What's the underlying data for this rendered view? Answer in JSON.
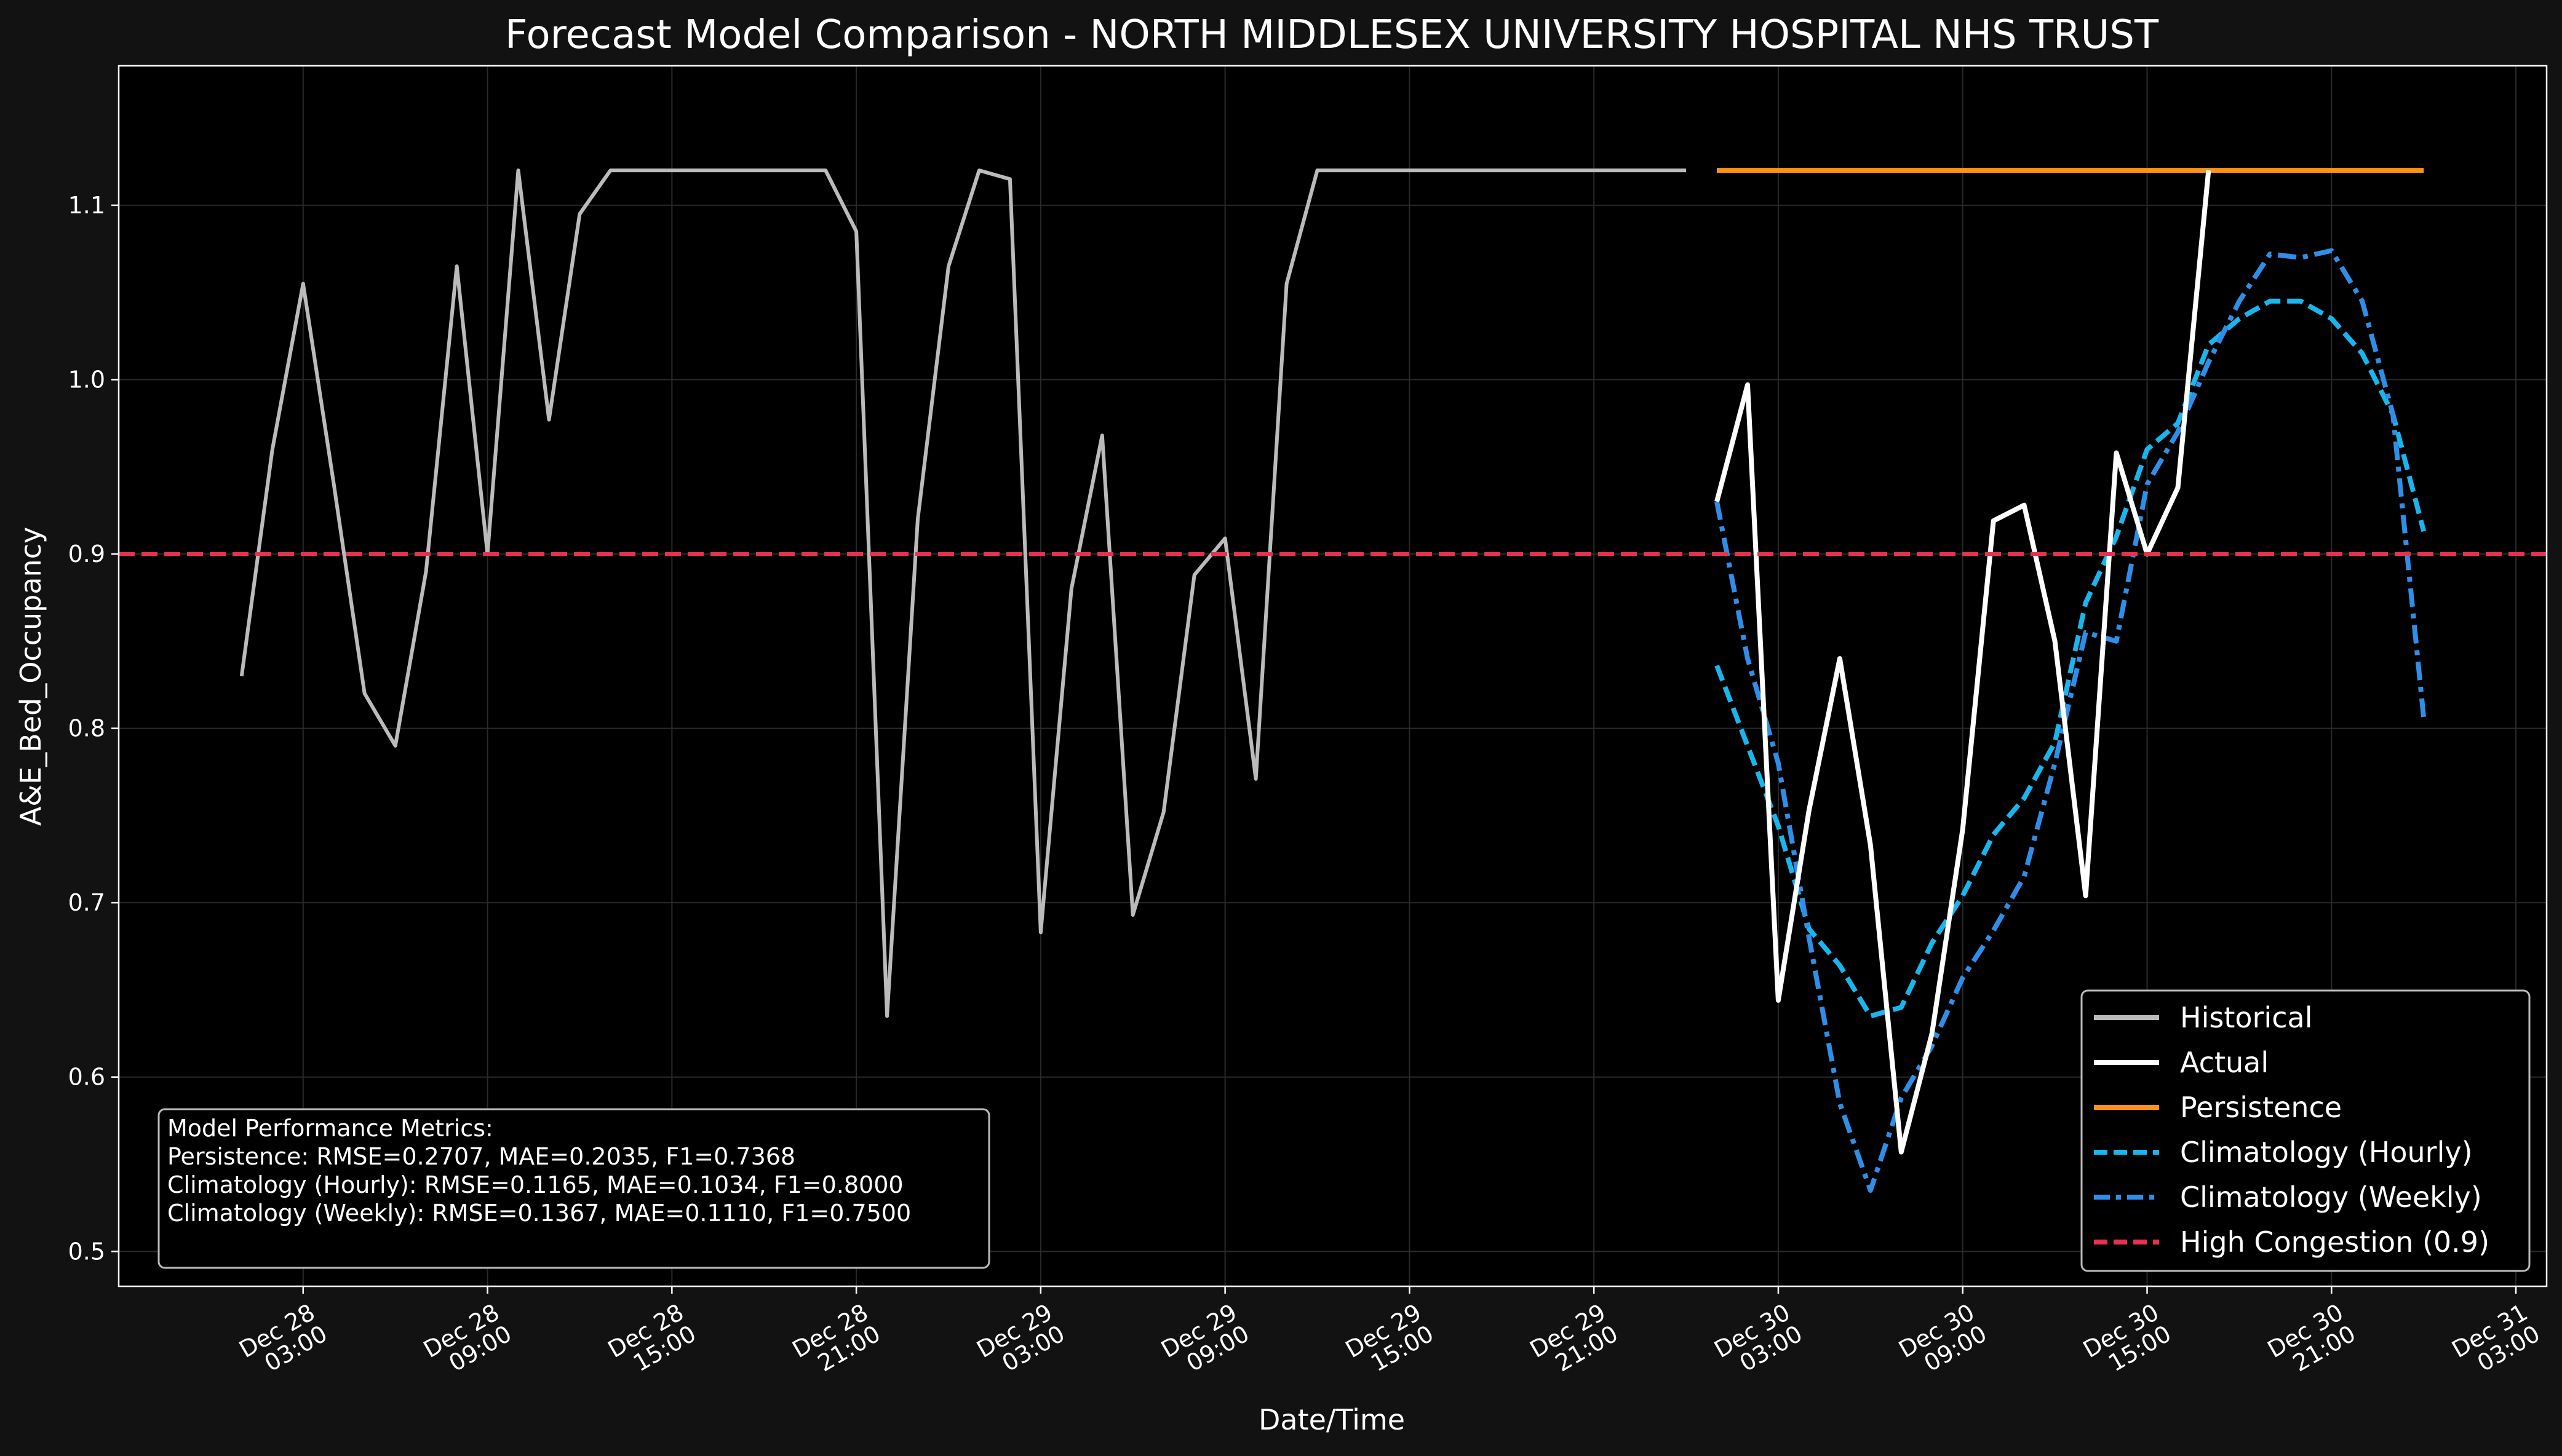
{
  "chart_data": {
    "type": "line",
    "title": "Forecast Model Comparison - NORTH MIDDLESEX UNIVERSITY HOSPITAL NHS TRUST",
    "xlabel": "Date/Time",
    "ylabel": "A&E_Bed_Occupancy",
    "xlim": [
      "2025-12-27T21:00",
      "2025-12-31T04:00"
    ],
    "ylim": [
      0.48,
      1.18
    ],
    "y_ticks": [
      "0.5",
      "0.6",
      "0.7",
      "0.8",
      "0.9",
      "1.0",
      "1.1"
    ],
    "x_ticks": [
      {
        "t": "2025-12-28T03:00",
        "line1": "Dec 28",
        "line2": "03:00"
      },
      {
        "t": "2025-12-28T09:00",
        "line1": "Dec 28",
        "line2": "09:00"
      },
      {
        "t": "2025-12-28T15:00",
        "line1": "Dec 28",
        "line2": "15:00"
      },
      {
        "t": "2025-12-28T21:00",
        "line1": "Dec 28",
        "line2": "21:00"
      },
      {
        "t": "2025-12-29T03:00",
        "line1": "Dec 29",
        "line2": "03:00"
      },
      {
        "t": "2025-12-29T09:00",
        "line1": "Dec 29",
        "line2": "09:00"
      },
      {
        "t": "2025-12-29T15:00",
        "line1": "Dec 29",
        "line2": "15:00"
      },
      {
        "t": "2025-12-29T21:00",
        "line1": "Dec 29",
        "line2": "21:00"
      },
      {
        "t": "2025-12-30T03:00",
        "line1": "Dec 30",
        "line2": "03:00"
      },
      {
        "t": "2025-12-30T09:00",
        "line1": "Dec 30",
        "line2": "09:00"
      },
      {
        "t": "2025-12-30T15:00",
        "line1": "Dec 30",
        "line2": "15:00"
      },
      {
        "t": "2025-12-30T21:00",
        "line1": "Dec 30",
        "line2": "21:00"
      },
      {
        "t": "2025-12-31T03:00",
        "line1": "Dec 31",
        "line2": "03:00"
      }
    ],
    "grid": true,
    "legend_position": "lower right",
    "series": [
      {
        "name": "Historical",
        "color": "#bbbbbb",
        "style": "solid",
        "start": "2025-12-28T01:00",
        "step_hours": 1,
        "values": [
          0.83,
          0.96,
          1.055,
          0.94,
          0.82,
          0.79,
          0.89,
          1.065,
          0.9,
          1.12,
          0.977,
          1.095,
          1.12,
          1.12,
          1.12,
          1.12,
          1.12,
          1.12,
          1.12,
          1.12,
          1.085,
          0.635,
          0.92,
          1.065,
          1.12,
          1.115,
          0.683,
          0.88,
          0.968,
          0.693,
          0.752,
          0.888,
          0.909,
          0.771,
          1.055,
          1.12,
          1.12,
          1.12,
          1.12,
          1.12,
          1.12,
          1.12,
          1.12,
          1.12,
          1.12,
          1.12,
          1.12,
          1.12
        ]
      },
      {
        "name": "Actual",
        "color": "#ffffff",
        "style": "solid",
        "start": "2025-12-30T01:00",
        "step_hours": 1,
        "values": [
          0.93,
          0.997,
          0.644,
          0.753,
          0.84,
          0.733,
          0.557,
          0.625,
          0.742,
          0.919,
          0.928,
          0.85,
          0.704,
          0.958,
          0.9,
          0.938,
          1.12
        ]
      },
      {
        "name": "Persistence",
        "color": "#ff9216",
        "style": "solid",
        "start": "2025-12-30T01:00",
        "step_hours": 1,
        "values": [
          1.12,
          1.12,
          1.12,
          1.12,
          1.12,
          1.12,
          1.12,
          1.12,
          1.12,
          1.12,
          1.12,
          1.12,
          1.12,
          1.12,
          1.12,
          1.12,
          1.12,
          1.12,
          1.12,
          1.12,
          1.12,
          1.12,
          1.12,
          1.12
        ]
      },
      {
        "name": "Climatology (Hourly)",
        "color": "#19b6ee",
        "style": "dashed",
        "start": "2025-12-30T01:00",
        "step_hours": 1,
        "values": [
          0.836,
          0.79,
          0.744,
          0.685,
          0.664,
          0.635,
          0.64,
          0.677,
          0.704,
          0.739,
          0.76,
          0.792,
          0.872,
          0.91,
          0.96,
          0.975,
          1.02,
          1.035,
          1.045,
          1.045,
          1.035,
          1.015,
          0.98,
          0.913
        ]
      },
      {
        "name": "Climatology (Weekly)",
        "color": "#2f8fe8",
        "style": "dashdot",
        "start": "2025-12-30T01:00",
        "step_hours": 1,
        "values": [
          0.93,
          0.84,
          0.78,
          0.68,
          0.585,
          0.535,
          0.588,
          0.618,
          0.657,
          0.684,
          0.715,
          0.78,
          0.855,
          0.85,
          0.94,
          0.97,
          1.01,
          1.045,
          1.072,
          1.07,
          1.074,
          1.045,
          0.98,
          0.806
        ]
      }
    ],
    "reference_lines": [
      {
        "name": "High Congestion (0.9)",
        "y": 0.9,
        "color": "#e8314f",
        "style": "dashed"
      }
    ]
  },
  "metrics": {
    "title": "Model Performance Metrics:",
    "lines": [
      "Persistence: RMSE=0.2707, MAE=0.2035, F1=0.7368",
      "Climatology (Hourly): RMSE=0.1165, MAE=0.1034, F1=0.8000",
      "Climatology (Weekly): RMSE=0.1367, MAE=0.1110, F1=0.7500"
    ]
  },
  "colors": {
    "background": "#121212",
    "plot_background": "#000000",
    "grid": "#2a2a2a",
    "axes": "#ffffff"
  }
}
